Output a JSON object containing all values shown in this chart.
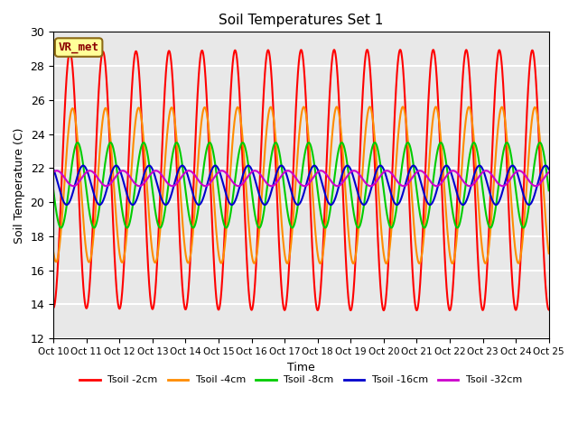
{
  "title": "Soil Temperatures Set 1",
  "xlabel": "Time",
  "ylabel": "Soil Temperature (C)",
  "ylim": [
    12,
    30
  ],
  "xlim": [
    0,
    15
  ],
  "xtick_labels": [
    "Oct 10",
    "Oct 11",
    "Oct 12",
    "Oct 13",
    "Oct 14",
    "Oct 15",
    "Oct 16",
    "Oct 17",
    "Oct 18",
    "Oct 19",
    "Oct 20",
    "Oct 21",
    "Oct 22",
    "Oct 23",
    "Oct 24",
    "Oct 25"
  ],
  "ytick_values": [
    12,
    14,
    16,
    18,
    20,
    22,
    24,
    26,
    28,
    30
  ],
  "annotation_text": "VR_met",
  "annotation_color": "#8B0000",
  "annotation_bg": "#FFFF99",
  "annotation_border": "#8B6914",
  "plot_bg": "#E8E8E8",
  "grid_color": "#FFFFFF",
  "series": [
    {
      "label": "Tsoil -2cm",
      "color": "#FF0000",
      "mean": 21.3,
      "amp": 7.5,
      "phase": 0.25,
      "amp_growth": 0.03
    },
    {
      "label": "Tsoil -4cm",
      "color": "#FF8C00",
      "mean": 21.0,
      "amp": 4.5,
      "phase": 0.33,
      "amp_growth": 0.02
    },
    {
      "label": "Tsoil -8cm",
      "color": "#00CC00",
      "mean": 21.0,
      "amp": 2.5,
      "phase": 0.48,
      "amp_growth": 0.0
    },
    {
      "label": "Tsoil -16cm",
      "color": "#0000CC",
      "mean": 21.0,
      "amp": 1.15,
      "phase": 0.65,
      "amp_growth": 0.0
    },
    {
      "label": "Tsoil -32cm",
      "color": "#CC00CC",
      "mean": 21.4,
      "amp": 0.45,
      "phase": 0.85,
      "amp_growth": 0.0
    }
  ]
}
